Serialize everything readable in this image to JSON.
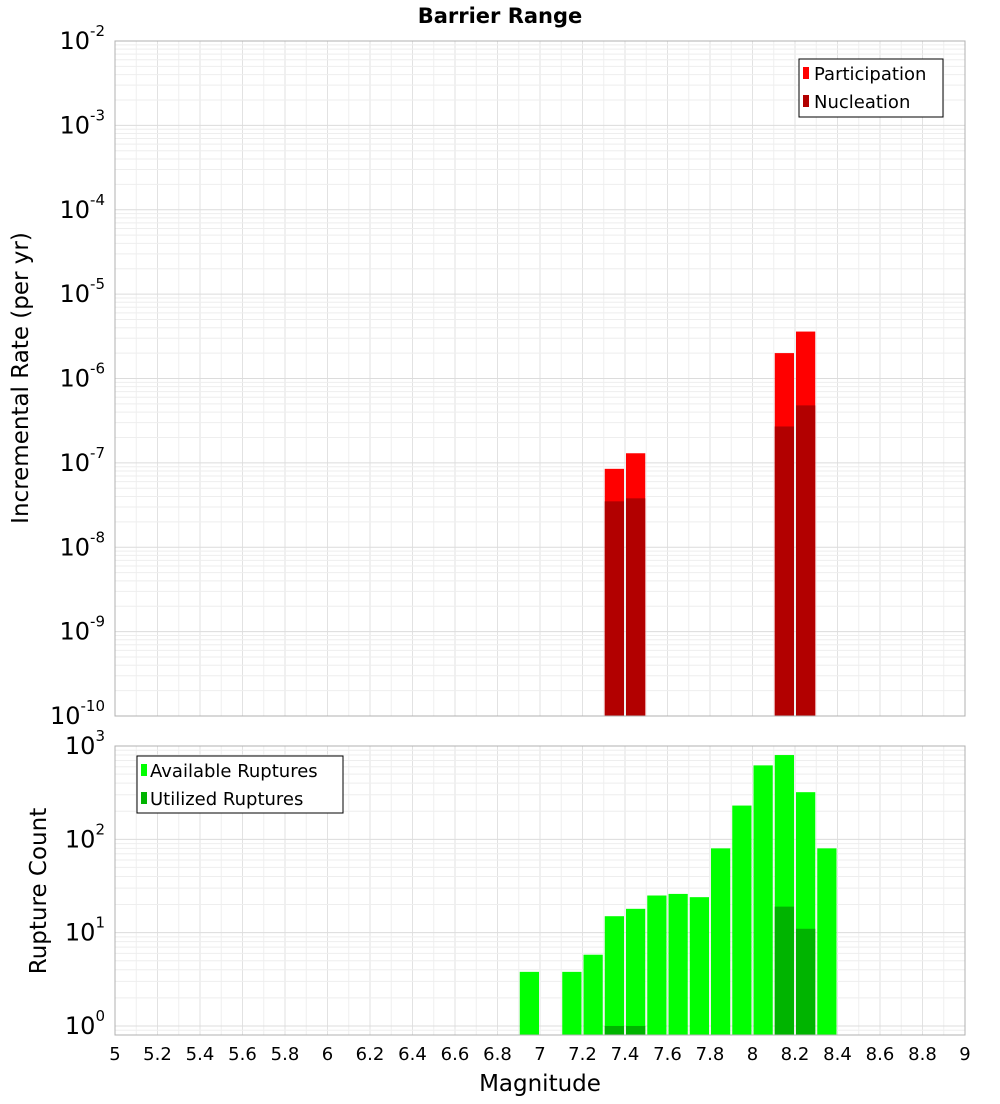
{
  "figure": {
    "title": "Barrier Range",
    "xlabel": "Magnitude"
  },
  "chart_data": [
    {
      "type": "bar",
      "title": "Barrier Range",
      "xlabel": "Magnitude",
      "ylabel": "Incremental Rate (per yr)",
      "yscale": "log",
      "ylim": [
        1e-10,
        0.01
      ],
      "xlim": [
        5,
        9
      ],
      "yticks": [
        {
          "base": "10",
          "exp": "-10"
        },
        {
          "base": "10",
          "exp": "-9"
        },
        {
          "base": "10",
          "exp": "-8"
        },
        {
          "base": "10",
          "exp": "-7"
        },
        {
          "base": "10",
          "exp": "-6"
        },
        {
          "base": "10",
          "exp": "-5"
        },
        {
          "base": "10",
          "exp": "-4"
        },
        {
          "base": "10",
          "exp": "-3"
        },
        {
          "base": "10",
          "exp": "-2"
        }
      ],
      "grid": true,
      "legend_position": "top-right",
      "bar_width": 0.1,
      "series": [
        {
          "name": "Participation",
          "color": "#ff0000",
          "x": [
            7.35,
            7.45,
            8.15,
            8.25
          ],
          "values": [
            8.5e-08,
            1.3e-07,
            2e-06,
            3.6e-06
          ]
        },
        {
          "name": "Nucleation",
          "color": "#b20000",
          "x": [
            7.35,
            7.45,
            8.15,
            8.25
          ],
          "values": [
            3.5e-08,
            3.8e-08,
            2.7e-07,
            4.8e-07
          ]
        }
      ]
    },
    {
      "type": "bar",
      "xlabel": "Magnitude",
      "ylabel": "Rupture Count",
      "yscale": "log",
      "ylim": [
        0.8,
        1000
      ],
      "xlim": [
        5,
        9
      ],
      "yticks": [
        {
          "base": "10",
          "exp": "0",
          "value": 1
        },
        {
          "base": "10",
          "exp": "1",
          "value": 10
        },
        {
          "base": "10",
          "exp": "2",
          "value": 100
        },
        {
          "base": "10",
          "exp": "3",
          "value": 1000
        }
      ],
      "xticks": [
        "5",
        "5.2",
        "5.4",
        "5.6",
        "5.8",
        "6",
        "6.2",
        "6.4",
        "6.6",
        "6.8",
        "7",
        "7.2",
        "7.4",
        "7.6",
        "7.8",
        "8",
        "8.2",
        "8.4",
        "8.6",
        "8.8",
        "9"
      ],
      "grid": true,
      "legend_position": "top-left",
      "bar_width": 0.1,
      "series": [
        {
          "name": "Available Ruptures",
          "color": "#00ff00",
          "x": [
            6.95,
            7.15,
            7.25,
            7.35,
            7.45,
            7.55,
            7.65,
            7.75,
            7.85,
            7.95,
            8.05,
            8.15,
            8.25,
            8.35
          ],
          "values": [
            3.8,
            3.8,
            5.8,
            15,
            18,
            25,
            26,
            24,
            80,
            230,
            620,
            800,
            320,
            80
          ]
        },
        {
          "name": "Utilized Ruptures",
          "color": "#00b400",
          "x": [
            7.35,
            7.45,
            8.15,
            8.25
          ],
          "values": [
            1,
            1,
            19,
            11
          ]
        }
      ]
    }
  ]
}
